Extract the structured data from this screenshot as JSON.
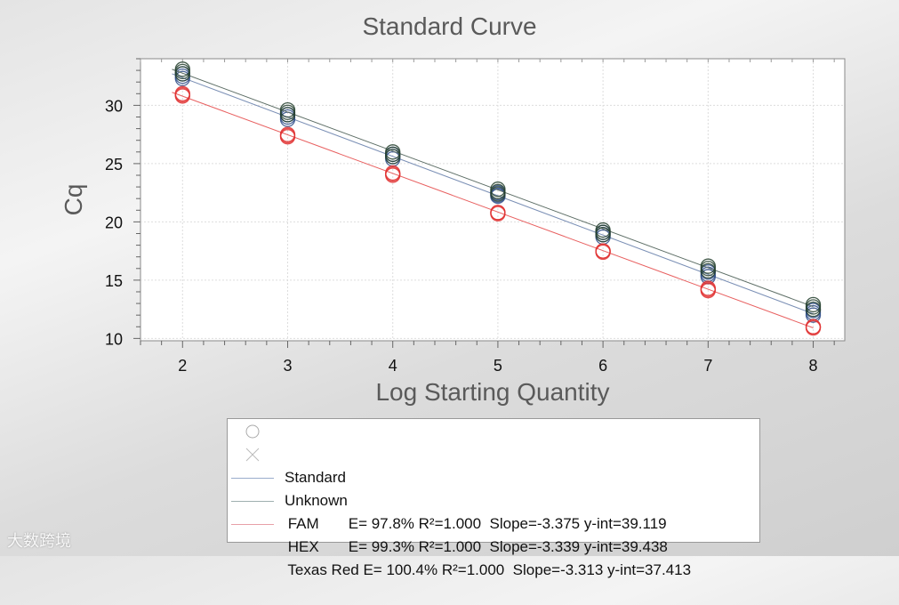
{
  "chart_data": {
    "type": "scatter",
    "title": "Standard Curve",
    "xlabel": "Log Starting Quantity",
    "ylabel": "Cq",
    "xlim": [
      1.6,
      8.3
    ],
    "ylim": [
      9.8,
      34.0
    ],
    "xticks": [
      2,
      3,
      4,
      5,
      6,
      7,
      8
    ],
    "yticks": [
      10,
      15,
      20,
      25,
      30
    ],
    "grid": true,
    "legend_position": "bottom",
    "series": [
      {
        "name": "FAM",
        "color": "#2c4a86",
        "line_color": "#7a8fb5",
        "slope": -3.375,
        "intercept": 39.119,
        "x": [
          2,
          2,
          2,
          3,
          3,
          3,
          4,
          4,
          4,
          5,
          5,
          5,
          6,
          6,
          6,
          7,
          7,
          7,
          8,
          8,
          8
        ],
        "y": [
          32.3,
          32.5,
          32.7,
          28.8,
          29.0,
          29.2,
          25.4,
          25.6,
          25.8,
          22.2,
          22.3,
          22.5,
          18.7,
          18.9,
          19.1,
          15.3,
          15.5,
          15.7,
          12.0,
          12.2,
          12.4
        ]
      },
      {
        "name": "HEX",
        "color": "#25402e",
        "line_color": "#5d6e66",
        "slope": -3.339,
        "intercept": 39.438,
        "x": [
          2,
          2,
          2,
          3,
          3,
          3,
          4,
          4,
          4,
          5,
          5,
          5,
          6,
          6,
          6,
          7,
          7,
          7,
          8,
          8,
          8
        ],
        "y": [
          32.7,
          32.9,
          33.1,
          29.2,
          29.4,
          29.6,
          25.8,
          26.0,
          25.6,
          22.4,
          22.6,
          22.8,
          19.1,
          19.3,
          18.9,
          15.8,
          16.0,
          16.2,
          12.5,
          12.7,
          12.9
        ]
      },
      {
        "name": "Texas Red",
        "color": "#e03030",
        "line_color": "#e86060",
        "slope": -3.313,
        "intercept": 37.413,
        "x": [
          2,
          2,
          2,
          3,
          3,
          3,
          4,
          4,
          4,
          5,
          5,
          5,
          6,
          6,
          6,
          7,
          7,
          7,
          8,
          8,
          8
        ],
        "y": [
          30.8,
          30.9,
          31.0,
          27.3,
          27.4,
          27.5,
          24.0,
          24.1,
          24.2,
          20.7,
          20.8,
          20.8,
          17.4,
          17.5,
          17.5,
          14.1,
          14.2,
          14.3,
          10.9,
          11.0,
          11.0
        ]
      }
    ]
  },
  "legend": {
    "standard": "Standard",
    "unknown": "Unknown",
    "rows": [
      {
        "name": "FAM",
        "stats": "E= 97.8% R²=1.000  Slope=-3.375 y-int=39.119",
        "text": " FAM       E= 97.8% R²=1.000  Slope=-3.375 y-int=39.119"
      },
      {
        "name": "HEX",
        "stats": "E= 99.3% R²=1.000  Slope=-3.339 y-int=39.438",
        "text": " HEX       E= 99.3% R²=1.000  Slope=-3.339 y-int=39.438"
      },
      {
        "name": "Texas Red",
        "stats": "E= 100.4% R²=1.000  Slope=-3.313 y-int=37.413",
        "text": " Texas Red E= 100.4% R²=1.000  Slope=-3.313 y-int=37.413"
      }
    ]
  },
  "watermark": "大数跨境"
}
